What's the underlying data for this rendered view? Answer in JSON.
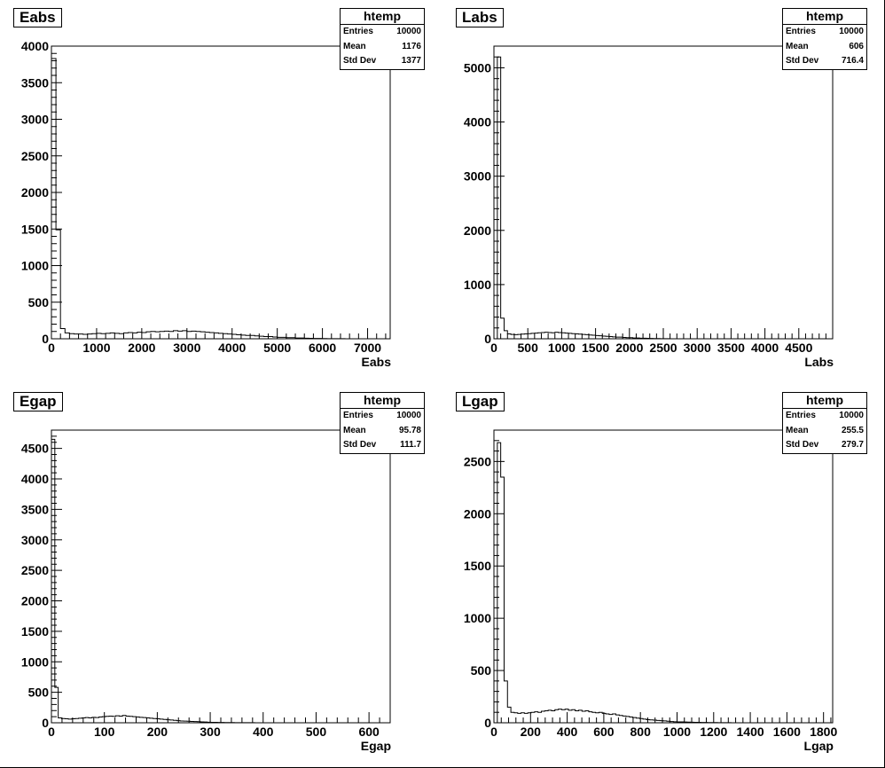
{
  "chart_data": [
    {
      "type": "bar",
      "title": "Eabs",
      "xlabel": "Eabs",
      "ylabel": "",
      "xlim": [
        0,
        7500
      ],
      "ylim": [
        0,
        4000
      ],
      "bin_width": 100,
      "x_ticks": [
        "0",
        "1000",
        "2000",
        "3000",
        "4000",
        "5000",
        "6000",
        "7000"
      ],
      "y_ticks": [
        "0",
        "500",
        "1000",
        "1500",
        "2000",
        "2500",
        "3000",
        "3500",
        "4000"
      ],
      "stats": {
        "name": "htemp",
        "entries": "10000",
        "mean": "1176",
        "std_dev": "1377"
      },
      "values": [
        3830,
        1490,
        140,
        80,
        70,
        65,
        65,
        60,
        65,
        70,
        75,
        70,
        75,
        80,
        75,
        70,
        80,
        85,
        80,
        90,
        85,
        95,
        100,
        95,
        100,
        105,
        100,
        110,
        105,
        110,
        100,
        105,
        100,
        95,
        90,
        85,
        80,
        75,
        70,
        65,
        60,
        55,
        50,
        45,
        45,
        40,
        35,
        30,
        30,
        25,
        20,
        20,
        15,
        15,
        10,
        10,
        8,
        6,
        5,
        4,
        3,
        2,
        2,
        1,
        1
      ]
    },
    {
      "type": "bar",
      "title": "Labs",
      "xlabel": "Labs",
      "ylabel": "",
      "xlim": [
        0,
        5000
      ],
      "ylim": [
        0,
        5400
      ],
      "bin_width": 50,
      "x_ticks": [
        "0",
        "500",
        "1000",
        "1500",
        "2000",
        "2500",
        "3000",
        "3500",
        "4000",
        "4500"
      ],
      "y_ticks": [
        "0",
        "1000",
        "2000",
        "3000",
        "4000",
        "5000"
      ],
      "stats": {
        "name": "htemp",
        "entries": "10000",
        "mean": "606",
        "std_dev": "716.4"
      },
      "values": [
        0,
        5200,
        380,
        150,
        90,
        80,
        75,
        80,
        85,
        90,
        95,
        100,
        105,
        110,
        115,
        120,
        115,
        110,
        120,
        115,
        110,
        105,
        100,
        95,
        90,
        85,
        80,
        75,
        70,
        65,
        60,
        55,
        50,
        45,
        40,
        35,
        30,
        30,
        25,
        20,
        20,
        15,
        15,
        10,
        10,
        8,
        6,
        5,
        4,
        3,
        2,
        2,
        1
      ]
    },
    {
      "type": "bar",
      "title": "Egap",
      "xlabel": "Egap",
      "ylabel": "",
      "xlim": [
        0,
        640
      ],
      "ylim": [
        0,
        4800
      ],
      "bin_width": 6.4,
      "x_ticks": [
        "0",
        "100",
        "200",
        "300",
        "400",
        "500",
        "600"
      ],
      "y_ticks": [
        "0",
        "500",
        "1000",
        "1500",
        "2000",
        "2500",
        "3000",
        "3500",
        "4000",
        "4500"
      ],
      "stats": {
        "name": "htemp",
        "entries": "10000",
        "mean": "95.78",
        "std_dev": "111.7"
      },
      "values": [
        4650,
        580,
        80,
        70,
        65,
        60,
        65,
        70,
        75,
        80,
        85,
        80,
        90,
        85,
        95,
        100,
        105,
        110,
        105,
        115,
        110,
        120,
        110,
        105,
        100,
        95,
        90,
        85,
        80,
        75,
        70,
        65,
        60,
        55,
        50,
        45,
        40,
        35,
        30,
        28,
        25,
        22,
        20,
        18,
        15,
        12,
        10,
        8,
        7,
        6,
        5,
        4,
        3,
        3,
        2,
        2,
        1,
        1,
        1,
        1
      ]
    },
    {
      "type": "bar",
      "title": "Lgap",
      "xlabel": "Lgap",
      "ylabel": "",
      "xlim": [
        0,
        1850
      ],
      "ylim": [
        0,
        2800
      ],
      "bin_width": 18.5,
      "x_ticks": [
        "0",
        "200",
        "400",
        "600",
        "800",
        "1000",
        "1200",
        "1400",
        "1600",
        "1800"
      ],
      "y_ticks": [
        "0",
        "500",
        "1000",
        "1500",
        "2000",
        "2500"
      ],
      "stats": {
        "name": "htemp",
        "entries": "10000",
        "mean": "255.5",
        "std_dev": "279.7"
      },
      "values": [
        0,
        2680,
        2350,
        400,
        150,
        100,
        95,
        90,
        95,
        90,
        95,
        100,
        105,
        100,
        110,
        115,
        120,
        115,
        125,
        130,
        125,
        130,
        120,
        125,
        115,
        120,
        110,
        115,
        105,
        100,
        95,
        100,
        90,
        85,
        80,
        85,
        75,
        70,
        65,
        60,
        55,
        50,
        45,
        40,
        35,
        30,
        28,
        25,
        22,
        20,
        18,
        15,
        12,
        10,
        9,
        8,
        7,
        6,
        5,
        4,
        4,
        3,
        3,
        2,
        2,
        2,
        1,
        1,
        1,
        1
      ]
    }
  ]
}
